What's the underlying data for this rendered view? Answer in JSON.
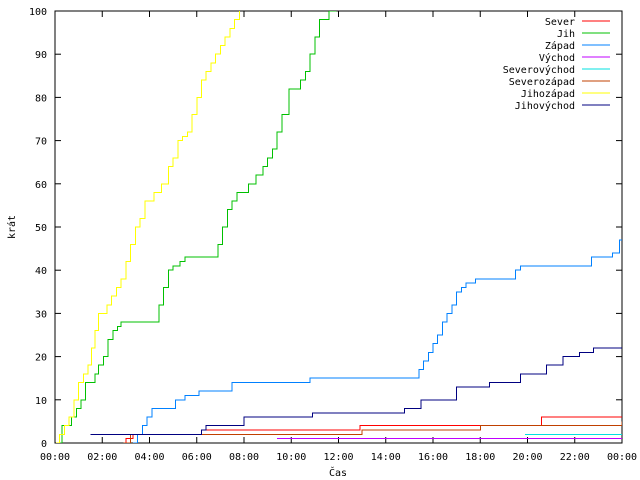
{
  "chart_data": {
    "type": "line",
    "title": "",
    "xlabel": "Čas",
    "ylabel": "krát",
    "xlim": [
      0,
      24
    ],
    "ylim": [
      0,
      100
    ],
    "grid": false,
    "legend_position": "top-right",
    "x_ticks": [
      0,
      2,
      4,
      6,
      8,
      10,
      12,
      14,
      16,
      18,
      20,
      22,
      24
    ],
    "x_tick_labels": [
      "00:00",
      "02:00",
      "04:00",
      "06:00",
      "08:00",
      "10:00",
      "12:00",
      "14:00",
      "16:00",
      "18:00",
      "20:00",
      "22:00",
      "00:00"
    ],
    "y_ticks": [
      0,
      10,
      20,
      30,
      40,
      50,
      60,
      70,
      80,
      90,
      100
    ],
    "y_tick_labels": [
      "0",
      "10",
      "20",
      "30",
      "40",
      "50",
      "60",
      "70",
      "80",
      "90",
      "100"
    ],
    "series": [
      {
        "name": "Sever",
        "color": "#ff0000",
        "x": [
          2.9,
          3.0,
          3.3,
          6.2,
          12.9,
          17.9,
          20.6,
          24.0
        ],
        "y": [
          0,
          1,
          2,
          3,
          4,
          4,
          6,
          6
        ]
      },
      {
        "name": "Jih",
        "color": "#00c000",
        "x": [
          0.15,
          0.3,
          0.5,
          0.7,
          0.9,
          1.1,
          1.3,
          1.5,
          1.7,
          1.85,
          2.05,
          2.25,
          2.45,
          2.65,
          2.8,
          4.2,
          4.4,
          4.6,
          4.8,
          5.0,
          5.3,
          5.5,
          6.7,
          6.9,
          7.1,
          7.3,
          7.5,
          7.7,
          7.9,
          8.2,
          8.5,
          8.8,
          9.0,
          9.2,
          9.4,
          9.6,
          9.9,
          10.2,
          10.4,
          10.6,
          10.8,
          11.0,
          11.2,
          11.4,
          11.6,
          11.75,
          11.9
        ],
        "y": [
          0,
          4,
          4,
          6,
          8,
          10,
          14,
          14,
          16,
          18,
          20,
          24,
          26,
          27,
          28,
          28,
          32,
          36,
          40,
          41,
          42,
          43,
          43,
          46,
          50,
          54,
          56,
          58,
          58,
          60,
          62,
          64,
          66,
          68,
          72,
          76,
          82,
          82,
          84,
          86,
          90,
          94,
          98,
          98,
          100,
          100,
          101
        ]
      },
      {
        "name": "Západ",
        "color": "#0080ff",
        "x": [
          3.3,
          3.5,
          3.7,
          3.9,
          4.1,
          5.1,
          5.5,
          6.1,
          7.5,
          10.8,
          15.2,
          15.4,
          15.6,
          15.8,
          16.0,
          16.2,
          16.4,
          16.6,
          16.8,
          17.0,
          17.2,
          17.4,
          17.6,
          17.8,
          19.5,
          19.7,
          22.7,
          23.6,
          23.9,
          24.0
        ],
        "y": [
          0,
          2,
          4,
          6,
          8,
          10,
          11,
          12,
          14,
          15,
          15,
          17,
          19,
          21,
          23,
          25,
          28,
          30,
          32,
          35,
          36,
          37,
          37,
          38,
          40,
          41,
          43,
          44,
          47,
          47
        ]
      },
      {
        "name": "Východ",
        "color": "#c000ff",
        "x": [
          9.4,
          24.0
        ],
        "y": [
          1,
          1
        ]
      },
      {
        "name": "Severovýchod",
        "color": "#00e0e0",
        "x": [
          19.9,
          24.0
        ],
        "y": [
          2,
          2
        ]
      },
      {
        "name": "Severozápad",
        "color": "#c04000",
        "x": [
          2.9,
          3.2,
          13.0,
          18.0,
          24.0
        ],
        "y": [
          0,
          2,
          3,
          4,
          5
        ]
      },
      {
        "name": "Jihozápad",
        "color": "#ffff00",
        "x": [
          0.05,
          0.2,
          0.4,
          0.6,
          0.8,
          1.0,
          1.2,
          1.4,
          1.55,
          1.7,
          1.85,
          2.0,
          2.2,
          2.4,
          2.6,
          2.8,
          3.0,
          3.2,
          3.4,
          3.6,
          3.8,
          4.0,
          4.2,
          4.5,
          4.8,
          5.0,
          5.2,
          5.4,
          5.6,
          5.8,
          6.0,
          6.2,
          6.4,
          6.6,
          6.8,
          7.0,
          7.2,
          7.4,
          7.6,
          7.8
        ],
        "y": [
          0,
          2,
          4,
          6,
          10,
          14,
          16,
          18,
          22,
          26,
          30,
          30,
          32,
          34,
          36,
          38,
          42,
          46,
          50,
          52,
          56,
          56,
          58,
          60,
          64,
          66,
          70,
          71,
          72,
          76,
          80,
          84,
          86,
          88,
          90,
          92,
          94,
          96,
          98,
          101
        ]
      },
      {
        "name": "Jihovýchod",
        "color": "#000080",
        "x": [
          1.5,
          2.4,
          6.2,
          6.4,
          6.6,
          8.0,
          10.9,
          14.5,
          14.8,
          15.5,
          17.0,
          18.4,
          19.7,
          20.8,
          21.5,
          22.2,
          22.8,
          24.0
        ],
        "y": [
          2,
          2,
          3,
          4,
          4,
          6,
          7,
          7,
          8,
          10,
          13,
          14,
          16,
          18,
          20,
          21,
          22,
          22
        ]
      }
    ]
  }
}
